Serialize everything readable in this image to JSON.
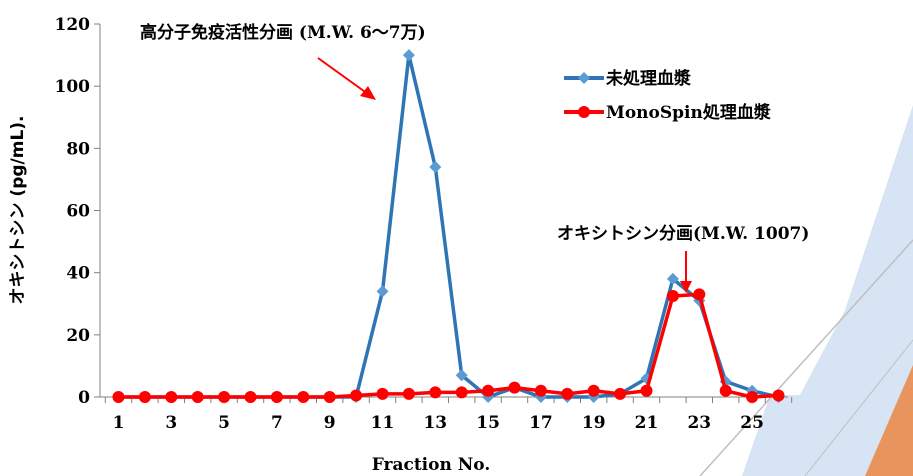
{
  "chart_data": {
    "type": "line",
    "xlabel": "Fraction No.",
    "ylabel": "オキシトシン (pg/mL).",
    "ylim": [
      0,
      120
    ],
    "yticks": [
      0,
      20,
      40,
      60,
      80,
      100,
      120
    ],
    "xticks": [
      1,
      3,
      5,
      7,
      9,
      11,
      13,
      15,
      17,
      19,
      21,
      23,
      25
    ],
    "x": [
      1,
      2,
      3,
      4,
      5,
      6,
      7,
      8,
      9,
      10,
      11,
      12,
      13,
      14,
      15,
      16,
      17,
      18,
      19,
      20,
      21,
      22,
      23,
      24,
      25,
      26
    ],
    "series": [
      {
        "name": "未処理血漿",
        "color": "#2E75B6",
        "marker": "diamond",
        "values": [
          0,
          0,
          0,
          0,
          0,
          0,
          0,
          0,
          0,
          0,
          34,
          110,
          74,
          7,
          0,
          3,
          0,
          0,
          0,
          1,
          6,
          38,
          31,
          5,
          2,
          0
        ]
      },
      {
        "name": "MonoSpin処理血漿",
        "color": "#FF0000",
        "marker": "circle",
        "values": [
          0,
          0,
          0,
          0,
          0,
          0,
          0,
          0,
          0,
          0.5,
          1,
          1,
          1.5,
          1.5,
          2,
          3,
          2,
          1,
          2,
          1,
          2,
          32.5,
          33,
          2,
          0,
          0.5
        ]
      }
    ],
    "legend_position": "top-right",
    "annotations": [
      {
        "text": "高分子免疫活性分画 (M.W.  6～7万)",
        "target_x": 11.5,
        "target_y": 94
      },
      {
        "text": "オキシトシン分画(M.W.  1007)",
        "target_x": 22.5,
        "target_y": 41
      }
    ],
    "grid": false
  },
  "decoration": {
    "colors": {
      "light_blue": "#D6E4F3",
      "orange": "#E8955D",
      "line": "#BFBFBF"
    }
  }
}
